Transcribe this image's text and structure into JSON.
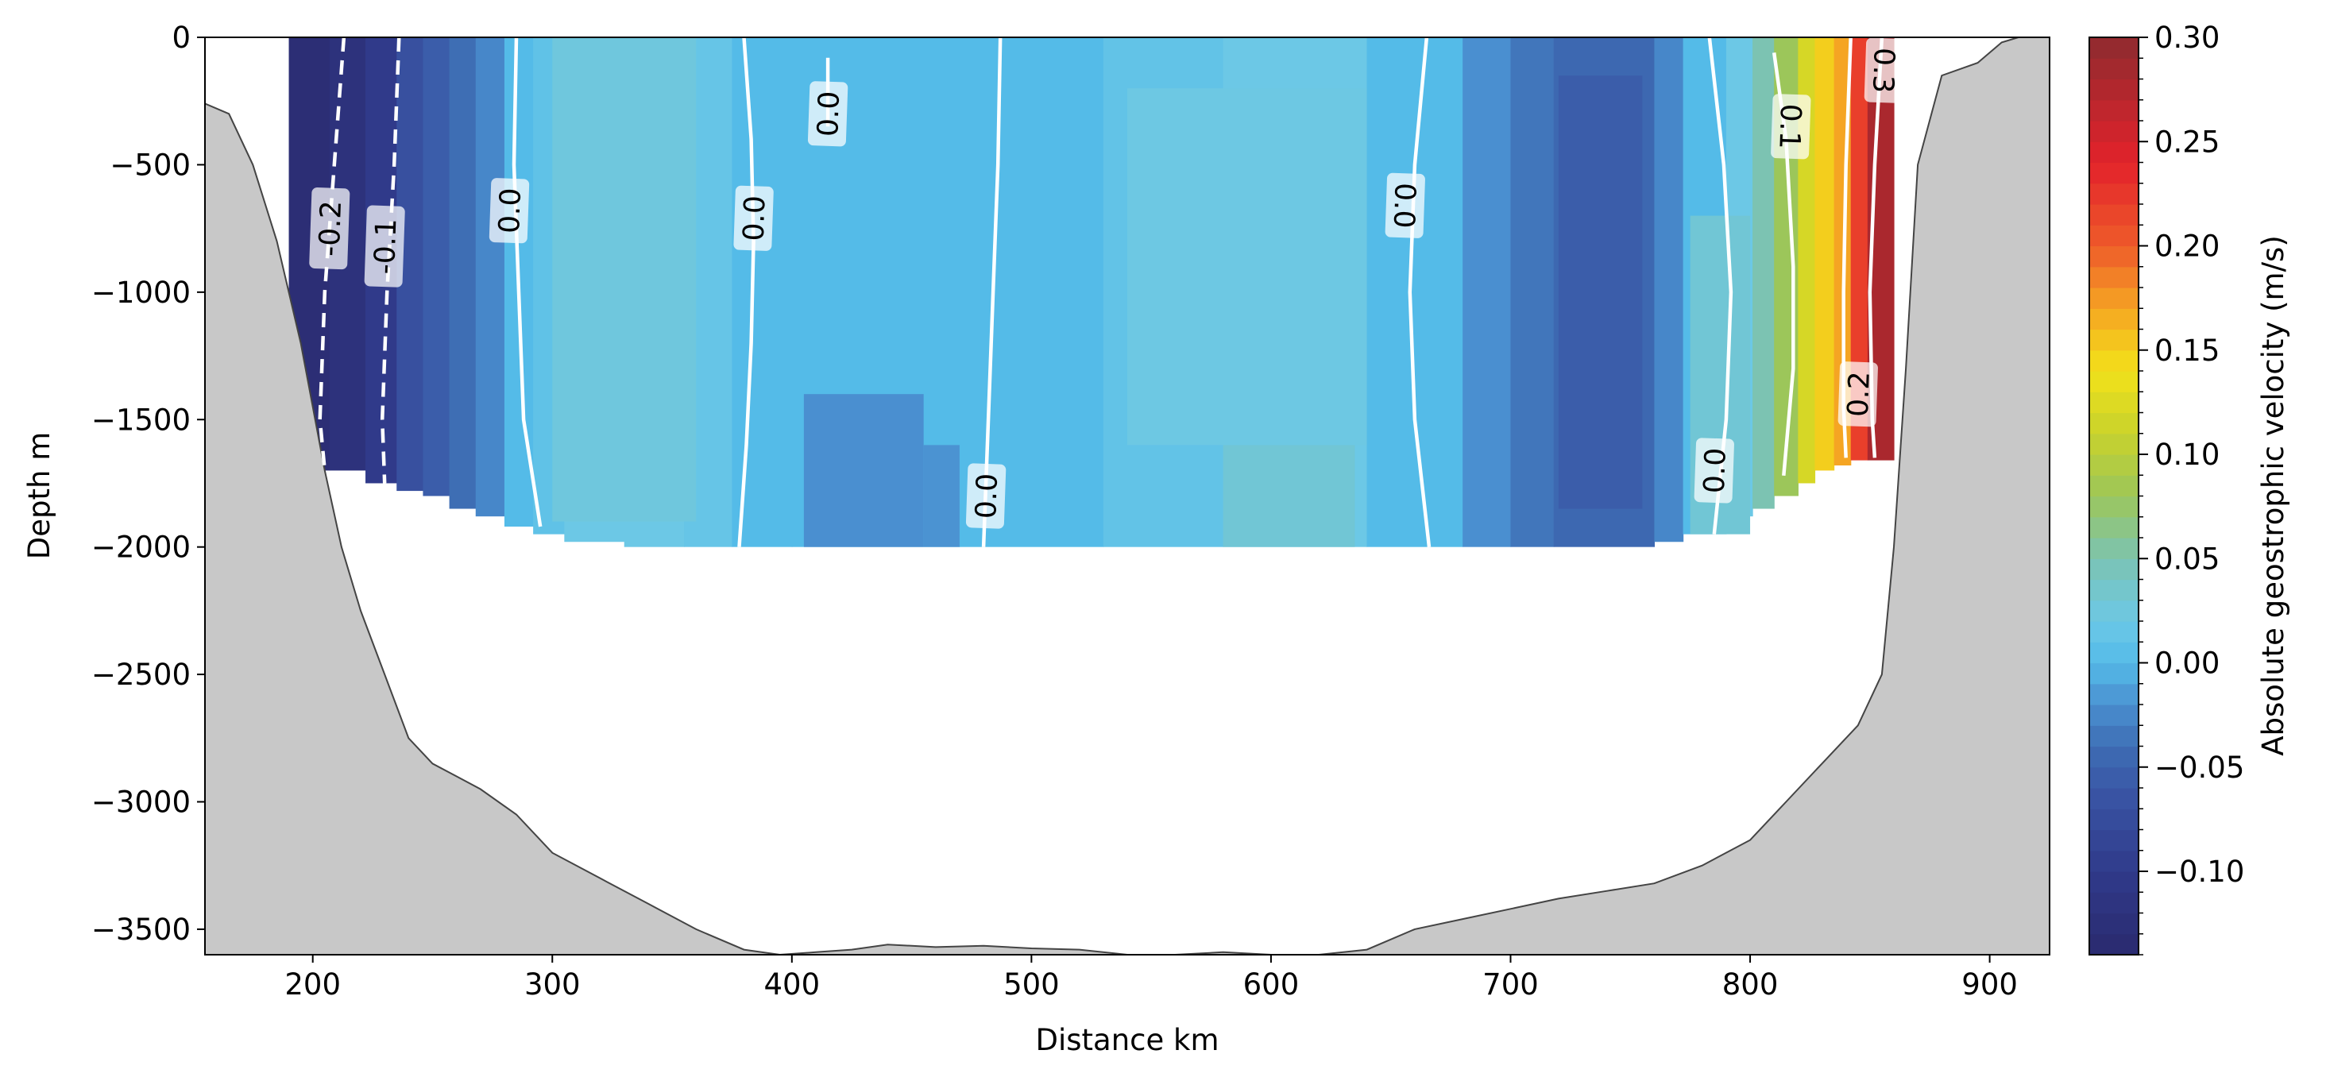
{
  "chart_data": {
    "type": "heatmap",
    "title": "",
    "xlabel": "Distance km",
    "ylabel": "Depth m",
    "xlim": [
      155,
      925
    ],
    "ylim": [
      -3600,
      0
    ],
    "x_ticks": [
      200,
      300,
      400,
      500,
      600,
      700,
      800,
      900
    ],
    "y_ticks": [
      0,
      -500,
      -1000,
      -1500,
      -2000,
      -2500,
      -3000,
      -3500
    ],
    "colorbar": {
      "label": "Absolute geostrophic velocity (m/s)",
      "range": [
        -0.14,
        0.3
      ],
      "ticks": [
        0.3,
        0.25,
        0.2,
        0.15,
        0.1,
        0.05,
        0.0,
        -0.05,
        -0.1
      ],
      "tick_labels": [
        "0.30",
        "0.25",
        "0.20",
        "0.15",
        "0.10",
        "0.05",
        "0.00",
        "−0.05",
        "−0.10"
      ],
      "colormap_stops": [
        {
          "v": -0.14,
          "c": "#2a2a6e"
        },
        {
          "v": -0.1,
          "c": "#303a8a"
        },
        {
          "v": -0.06,
          "c": "#3a57a6"
        },
        {
          "v": -0.04,
          "c": "#3e6eb4"
        },
        {
          "v": -0.02,
          "c": "#4a8fd0"
        },
        {
          "v": 0.0,
          "c": "#54bbe8"
        },
        {
          "v": 0.02,
          "c": "#6cc8e6"
        },
        {
          "v": 0.05,
          "c": "#7cc3b2"
        },
        {
          "v": 0.08,
          "c": "#9cc65a"
        },
        {
          "v": 0.11,
          "c": "#c8d22c"
        },
        {
          "v": 0.14,
          "c": "#f2e21a"
        },
        {
          "v": 0.17,
          "c": "#f5a523"
        },
        {
          "v": 0.2,
          "c": "#ee5b2a"
        },
        {
          "v": 0.24,
          "c": "#e3222b"
        },
        {
          "v": 0.3,
          "c": "#8e2b2f"
        }
      ]
    },
    "velocity_columns": [
      {
        "x0": 190,
        "x1": 207,
        "v": -0.13,
        "bottom": -1700
      },
      {
        "x0": 207,
        "x1": 222,
        "v": -0.12,
        "bottom": -1700
      },
      {
        "x0": 222,
        "x1": 235,
        "v": -0.1,
        "bottom": -1750
      },
      {
        "x0": 235,
        "x1": 246,
        "v": -0.07,
        "bottom": -1780
      },
      {
        "x0": 246,
        "x1": 257,
        "v": -0.055,
        "bottom": -1800
      },
      {
        "x0": 257,
        "x1": 268,
        "v": -0.04,
        "bottom": -1850
      },
      {
        "x0": 268,
        "x1": 280,
        "v": -0.025,
        "bottom": -1880
      },
      {
        "x0": 280,
        "x1": 292,
        "v": 0.0,
        "bottom": -1920
      },
      {
        "x0": 292,
        "x1": 305,
        "v": 0.01,
        "bottom": -1950
      },
      {
        "x0": 305,
        "x1": 330,
        "v": 0.02,
        "bottom": -1980
      },
      {
        "x0": 330,
        "x1": 355,
        "v": 0.02,
        "bottom": -2000
      },
      {
        "x0": 355,
        "x1": 375,
        "v": 0.015,
        "bottom": -2000
      },
      {
        "x0": 375,
        "x1": 400,
        "v": 0.0,
        "bottom": -2000
      },
      {
        "x0": 400,
        "x1": 470,
        "v": 0.0,
        "bottom": -2000
      },
      {
        "x0": 470,
        "x1": 530,
        "v": 0.0,
        "bottom": -2000
      },
      {
        "x0": 530,
        "x1": 580,
        "v": 0.012,
        "bottom": -2000
      },
      {
        "x0": 580,
        "x1": 640,
        "v": 0.02,
        "bottom": -2000
      },
      {
        "x0": 640,
        "x1": 680,
        "v": 0.0,
        "bottom": -2000
      },
      {
        "x0": 680,
        "x1": 700,
        "v": -0.02,
        "bottom": -2000
      },
      {
        "x0": 700,
        "x1": 718,
        "v": -0.035,
        "bottom": -2000
      },
      {
        "x0": 718,
        "x1": 760,
        "v": -0.045,
        "bottom": -2000
      },
      {
        "x0": 760,
        "x1": 772,
        "v": -0.025,
        "bottom": -1980
      },
      {
        "x0": 772,
        "x1": 790,
        "v": 0.0,
        "bottom": -1950
      },
      {
        "x0": 790,
        "x1": 801,
        "v": 0.02,
        "bottom": -1880
      },
      {
        "x0": 801,
        "x1": 810,
        "v": 0.05,
        "bottom": -1850
      },
      {
        "x0": 810,
        "x1": 820,
        "v": 0.08,
        "bottom": -1800
      },
      {
        "x0": 820,
        "x1": 827,
        "v": 0.12,
        "bottom": -1750
      },
      {
        "x0": 827,
        "x1": 835,
        "v": 0.15,
        "bottom": -1700
      },
      {
        "x0": 835,
        "x1": 842,
        "v": 0.17,
        "bottom": -1680
      },
      {
        "x0": 842,
        "x1": 849,
        "v": 0.22,
        "bottom": -1660
      },
      {
        "x0": 849,
        "x1": 860,
        "v": 0.28,
        "bottom": -1660
      }
    ],
    "velocity_patches": [
      {
        "x0": 300,
        "x1": 360,
        "y0": 0,
        "y1": -1900,
        "v": 0.025
      },
      {
        "x0": 405,
        "x1": 455,
        "y0": -1400,
        "y1": -2000,
        "v": -0.02
      },
      {
        "x0": 455,
        "x1": 470,
        "y0": -1600,
        "y1": -2000,
        "v": -0.018
      },
      {
        "x0": 540,
        "x1": 640,
        "y0": -200,
        "y1": -1600,
        "v": 0.022
      },
      {
        "x0": 580,
        "x1": 635,
        "y0": -1600,
        "y1": -2000,
        "v": 0.03
      },
      {
        "x0": 720,
        "x1": 755,
        "y0": -150,
        "y1": -1850,
        "v": -0.055
      },
      {
        "x0": 775,
        "x1": 800,
        "y0": -700,
        "y1": -1950,
        "v": 0.03
      }
    ],
    "contours": [
      {
        "label": "-0.2",
        "dashed": true,
        "points": [
          [
            213,
            0
          ],
          [
            209,
            -500
          ],
          [
            205,
            -1000
          ],
          [
            203,
            -1500
          ],
          [
            205,
            -1700
          ]
        ],
        "label_at": [
          207,
          -750
        ]
      },
      {
        "label": "-0.1",
        "dashed": true,
        "points": [
          [
            236,
            0
          ],
          [
            234,
            -500
          ],
          [
            231,
            -1000
          ],
          [
            229,
            -1500
          ],
          [
            230,
            -1750
          ]
        ],
        "label_at": [
          230,
          -820
        ]
      },
      {
        "label": "0.0",
        "dashed": false,
        "points": [
          [
            285,
            0
          ],
          [
            284,
            -500
          ],
          [
            286,
            -1000
          ],
          [
            288,
            -1500
          ],
          [
            295,
            -1920
          ]
        ],
        "label_at": [
          282,
          -680
        ]
      },
      {
        "label": "0.0",
        "dashed": false,
        "points": [
          [
            380,
            0
          ],
          [
            383,
            -400
          ],
          [
            384,
            -800
          ],
          [
            383,
            -1200
          ],
          [
            381,
            -1600
          ],
          [
            378,
            -2000
          ]
        ],
        "label_at": [
          384,
          -710
        ]
      },
      {
        "label": "0.0",
        "dashed": false,
        "points": [
          [
            415,
            -80
          ],
          [
            415,
            -350
          ]
        ],
        "label_at": [
          415,
          -300
        ]
      },
      {
        "label": "0.0",
        "dashed": false,
        "points": [
          [
            487,
            0
          ],
          [
            486,
            -500
          ],
          [
            484,
            -1000
          ],
          [
            482,
            -1500
          ],
          [
            480,
            -2000
          ]
        ],
        "label_at": [
          481,
          -1800
        ]
      },
      {
        "label": "0.0",
        "dashed": false,
        "points": [
          [
            665,
            0
          ],
          [
            660,
            -500
          ],
          [
            658,
            -1000
          ],
          [
            660,
            -1500
          ],
          [
            666,
            -2000
          ]
        ],
        "label_at": [
          656,
          -660
        ]
      },
      {
        "label": "0.0",
        "dashed": false,
        "points": [
          [
            783,
            0
          ],
          [
            789,
            -500
          ],
          [
            792,
            -1000
          ],
          [
            790,
            -1500
          ],
          [
            785,
            -1950
          ]
        ],
        "label_at": [
          785,
          -1700
        ]
      },
      {
        "label": "0.1",
        "dashed": false,
        "points": [
          [
            810,
            -60
          ],
          [
            815,
            -400
          ],
          [
            818,
            -900
          ],
          [
            818,
            -1300
          ],
          [
            814,
            -1720
          ]
        ],
        "label_at": [
          817,
          -350
        ]
      },
      {
        "label": "0.2",
        "dashed": false,
        "points": [
          [
            842,
            0
          ],
          [
            840,
            -500
          ],
          [
            839,
            -1000
          ],
          [
            839,
            -1450
          ],
          [
            840,
            -1650
          ]
        ],
        "label_at": [
          845,
          -1400
        ]
      },
      {
        "label": "0.3",
        "dashed": false,
        "points": [
          [
            855,
            0
          ],
          [
            852,
            -500
          ],
          [
            850,
            -1000
          ],
          [
            851,
            -1500
          ],
          [
            852,
            -1650
          ]
        ],
        "label_at": [
          856,
          -130
        ]
      }
    ],
    "bathymetry": [
      [
        155,
        -260
      ],
      [
        165,
        -300
      ],
      [
        175,
        -500
      ],
      [
        185,
        -800
      ],
      [
        195,
        -1200
      ],
      [
        205,
        -1700
      ],
      [
        212,
        -2000
      ],
      [
        220,
        -2250
      ],
      [
        230,
        -2500
      ],
      [
        240,
        -2750
      ],
      [
        250,
        -2850
      ],
      [
        260,
        -2900
      ],
      [
        270,
        -2950
      ],
      [
        285,
        -3050
      ],
      [
        300,
        -3200
      ],
      [
        320,
        -3300
      ],
      [
        340,
        -3400
      ],
      [
        360,
        -3500
      ],
      [
        380,
        -3580
      ],
      [
        395,
        -3600
      ],
      [
        410,
        -3590
      ],
      [
        425,
        -3580
      ],
      [
        440,
        -3560
      ],
      [
        460,
        -3570
      ],
      [
        480,
        -3565
      ],
      [
        500,
        -3575
      ],
      [
        520,
        -3580
      ],
      [
        540,
        -3600
      ],
      [
        560,
        -3600
      ],
      [
        580,
        -3590
      ],
      [
        600,
        -3600
      ],
      [
        620,
        -3600
      ],
      [
        640,
        -3580
      ],
      [
        660,
        -3500
      ],
      [
        680,
        -3460
      ],
      [
        700,
        -3420
      ],
      [
        720,
        -3380
      ],
      [
        740,
        -3350
      ],
      [
        760,
        -3320
      ],
      [
        780,
        -3250
      ],
      [
        800,
        -3150
      ],
      [
        815,
        -3000
      ],
      [
        830,
        -2850
      ],
      [
        845,
        -2700
      ],
      [
        855,
        -2500
      ],
      [
        860,
        -2000
      ],
      [
        865,
        -1300
      ],
      [
        870,
        -500
      ],
      [
        880,
        -150
      ],
      [
        895,
        -100
      ],
      [
        905,
        -20
      ],
      [
        912,
        0
      ],
      [
        925,
        0
      ]
    ]
  }
}
